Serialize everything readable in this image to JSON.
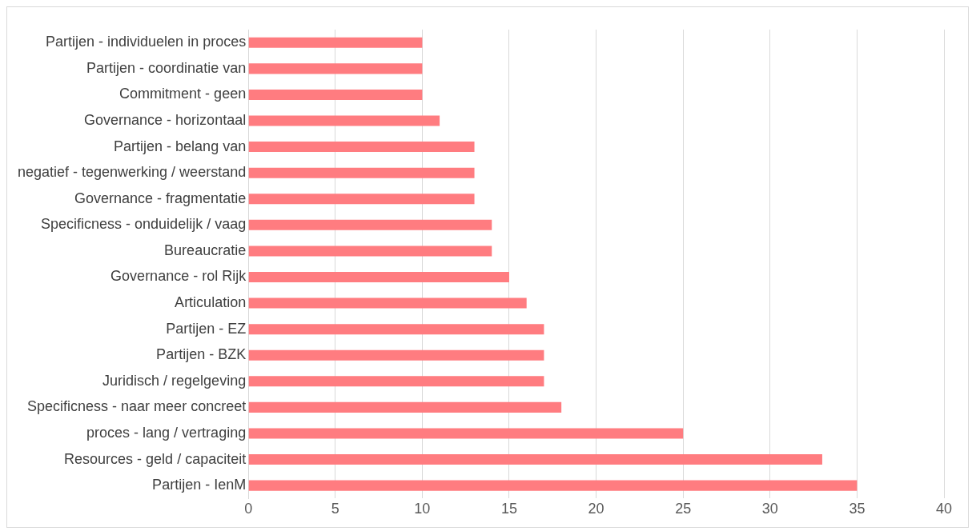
{
  "chart_data": {
    "type": "bar",
    "orientation": "horizontal",
    "categories": [
      "Partijen - individuelen in proces",
      "Partijen - coordinatie van",
      "Commitment - geen",
      "Governance - horizontaal",
      "Partijen - belang van",
      "negatief - tegenwerking / weerstand",
      "Governance - fragmentatie",
      "Specificness - onduidelijk / vaag",
      "Bureaucratie",
      "Governance - rol Rijk",
      "Articulation",
      "Partijen - EZ",
      "Partijen - BZK",
      "Juridisch / regelgeving",
      "Specificness - naar meer concreet",
      "proces - lang / vertraging",
      "Resources - geld / capaciteit",
      "Partijen - IenM"
    ],
    "values": [
      10,
      10,
      10,
      11,
      13,
      13,
      13,
      14,
      14,
      15,
      16,
      17,
      17,
      17,
      18,
      25,
      33,
      35
    ],
    "color": "#ff7c80",
    "xlim": [
      0,
      40
    ],
    "xticks": [
      0,
      5,
      10,
      15,
      20,
      25,
      30,
      35,
      40
    ],
    "grid": "x",
    "legend": false
  }
}
